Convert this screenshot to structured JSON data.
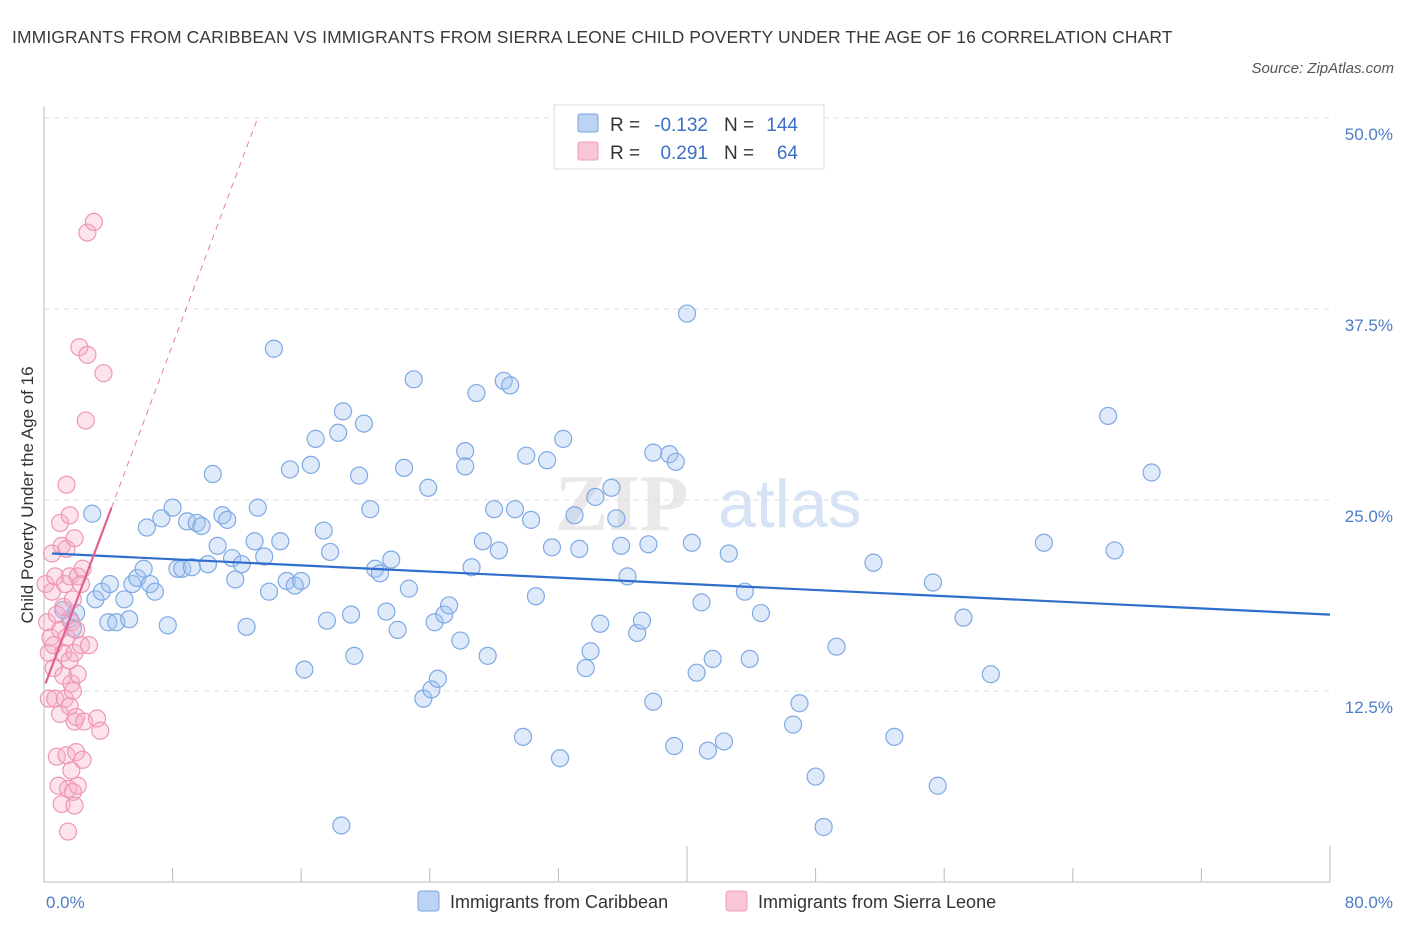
{
  "title": "IMMIGRANTS FROM CARIBBEAN VS IMMIGRANTS FROM SIERRA LEONE CHILD POVERTY UNDER THE AGE OF 16 CORRELATION CHART",
  "source": "Source: ZipAtlas.com",
  "watermark": {
    "zip": "ZIP",
    "atlas": "atlas"
  },
  "colors": {
    "blue": "#8fb6ea",
    "blue_line": "#2f6fcb",
    "pink": "#f2a2bd",
    "pink_line": "#e0608e",
    "axis_text": "#4a7cc9"
  },
  "legend_box": {
    "rows": [
      {
        "r_label": "R =",
        "r_value": "-0.132",
        "n_label": "N =",
        "n_value": "144"
      },
      {
        "r_label": "R =",
        "r_value": "0.291",
        "n_label": "N =",
        "n_value": "64"
      }
    ]
  },
  "chart_data": {
    "type": "scatter",
    "title": "IMMIGRANTS FROM CARIBBEAN VS IMMIGRANTS FROM SIERRA LEONE CHILD POVERTY UNDER THE AGE OF 16 CORRELATION CHART",
    "xlabel": "",
    "ylabel": "Child Poverty Under the Age of 16",
    "xlim": [
      0,
      80
    ],
    "ylim": [
      0,
      50
    ],
    "x_tick_labels": [
      "0.0%",
      "80.0%"
    ],
    "y_tick_labels": [
      "12.5%",
      "25.0%",
      "37.5%",
      "50.0%"
    ],
    "y_ticks": [
      12.5,
      25.0,
      37.5,
      50.0
    ],
    "grid": true,
    "legend_position": "bottom",
    "series": [
      {
        "name": "Immigrants from Caribbean",
        "color": "#8fb6ea",
        "R": -0.132,
        "N": 144,
        "trend": {
          "x": [
            0.5,
            80
          ],
          "y": [
            21.5,
            17.5
          ]
        },
        "points": [
          [
            1.2,
            17.8
          ],
          [
            1.6,
            17.2
          ],
          [
            2.0,
            17.6
          ],
          [
            1.8,
            16.6
          ],
          [
            3.0,
            24.1
          ],
          [
            3.2,
            18.5
          ],
          [
            3.6,
            19.0
          ],
          [
            4.0,
            17.0
          ],
          [
            4.1,
            19.5
          ],
          [
            4.5,
            17.0
          ],
          [
            5.0,
            18.5
          ],
          [
            5.3,
            17.2
          ],
          [
            5.5,
            19.5
          ],
          [
            5.8,
            19.9
          ],
          [
            6.2,
            20.5
          ],
          [
            6.4,
            23.2
          ],
          [
            6.6,
            19.5
          ],
          [
            6.9,
            19.0
          ],
          [
            7.3,
            23.8
          ],
          [
            7.7,
            16.8
          ],
          [
            8.0,
            24.5
          ],
          [
            8.3,
            20.5
          ],
          [
            8.6,
            20.5
          ],
          [
            8.9,
            23.6
          ],
          [
            9.2,
            20.6
          ],
          [
            9.5,
            23.5
          ],
          [
            9.8,
            23.3
          ],
          [
            10.2,
            20.8
          ],
          [
            10.5,
            26.7
          ],
          [
            10.8,
            22.0
          ],
          [
            11.1,
            24.0
          ],
          [
            11.4,
            23.7
          ],
          [
            11.7,
            21.2
          ],
          [
            11.9,
            19.8
          ],
          [
            12.3,
            20.8
          ],
          [
            12.6,
            16.7
          ],
          [
            13.1,
            22.3
          ],
          [
            13.3,
            24.5
          ],
          [
            13.7,
            21.3
          ],
          [
            14.0,
            19.0
          ],
          [
            14.3,
            34.9
          ],
          [
            14.7,
            22.3
          ],
          [
            15.1,
            19.7
          ],
          [
            15.3,
            27.0
          ],
          [
            15.6,
            19.4
          ],
          [
            16.0,
            19.7
          ],
          [
            16.2,
            13.9
          ],
          [
            16.6,
            27.3
          ],
          [
            16.9,
            29.0
          ],
          [
            17.4,
            23.0
          ],
          [
            17.6,
            17.1
          ],
          [
            17.8,
            21.6
          ],
          [
            18.3,
            29.4
          ],
          [
            18.6,
            30.8
          ],
          [
            19.1,
            17.5
          ],
          [
            19.3,
            14.8
          ],
          [
            19.6,
            26.6
          ],
          [
            19.9,
            30.0
          ],
          [
            20.3,
            24.4
          ],
          [
            20.6,
            20.5
          ],
          [
            20.9,
            20.2
          ],
          [
            21.3,
            17.7
          ],
          [
            21.6,
            21.1
          ],
          [
            22.0,
            16.5
          ],
          [
            22.4,
            27.1
          ],
          [
            22.7,
            19.2
          ],
          [
            23.0,
            32.9
          ],
          [
            23.6,
            12.0
          ],
          [
            23.9,
            25.8
          ],
          [
            24.1,
            12.6
          ],
          [
            24.3,
            17.0
          ],
          [
            24.5,
            13.3
          ],
          [
            24.9,
            17.5
          ],
          [
            25.2,
            18.1
          ],
          [
            25.9,
            15.8
          ],
          [
            26.2,
            28.2
          ],
          [
            26.2,
            27.2
          ],
          [
            26.6,
            20.6
          ],
          [
            26.9,
            32.0
          ],
          [
            27.3,
            22.3
          ],
          [
            27.6,
            14.8
          ],
          [
            28.0,
            24.4
          ],
          [
            28.3,
            21.7
          ],
          [
            28.6,
            32.8
          ],
          [
            29.0,
            32.5
          ],
          [
            29.3,
            24.4
          ],
          [
            29.8,
            9.5
          ],
          [
            30.0,
            27.9
          ],
          [
            30.3,
            23.7
          ],
          [
            30.6,
            18.7
          ],
          [
            31.3,
            27.6
          ],
          [
            31.6,
            21.9
          ],
          [
            32.3,
            29.0
          ],
          [
            32.1,
            8.1
          ],
          [
            33.0,
            24.0
          ],
          [
            33.3,
            21.8
          ],
          [
            33.7,
            14.0
          ],
          [
            34.0,
            15.1
          ],
          [
            34.3,
            25.2
          ],
          [
            34.6,
            16.9
          ],
          [
            35.3,
            25.8
          ],
          [
            35.6,
            23.8
          ],
          [
            35.9,
            22.0
          ],
          [
            36.3,
            20.0
          ],
          [
            36.9,
            16.3
          ],
          [
            37.2,
            17.1
          ],
          [
            37.6,
            22.1
          ],
          [
            37.9,
            28.1
          ],
          [
            37.9,
            11.8
          ],
          [
            38.9,
            28.0
          ],
          [
            39.2,
            8.9
          ],
          [
            39.3,
            27.5
          ],
          [
            40.0,
            37.2
          ],
          [
            40.3,
            22.2
          ],
          [
            40.6,
            13.7
          ],
          [
            40.9,
            18.3
          ],
          [
            41.3,
            8.6
          ],
          [
            41.6,
            14.6
          ],
          [
            42.3,
            9.2
          ],
          [
            42.6,
            21.5
          ],
          [
            43.6,
            19.0
          ],
          [
            43.9,
            14.6
          ],
          [
            44.6,
            17.6
          ],
          [
            46.6,
            10.3
          ],
          [
            47.0,
            11.7
          ],
          [
            48.0,
            6.9
          ],
          [
            49.3,
            15.4
          ],
          [
            51.6,
            20.9
          ],
          [
            52.9,
            9.5
          ],
          [
            55.3,
            19.6
          ],
          [
            55.6,
            6.3
          ],
          [
            57.2,
            17.3
          ],
          [
            58.9,
            13.6
          ],
          [
            62.2,
            22.2
          ],
          [
            66.2,
            30.5
          ],
          [
            66.6,
            21.7
          ],
          [
            68.9,
            26.8
          ],
          [
            18.5,
            3.7
          ],
          [
            48.5,
            3.6
          ]
        ]
      },
      {
        "name": "Immigrants from Sierra Leone",
        "color": "#f2a2bd",
        "R": 0.291,
        "N": 64,
        "trend": {
          "x": [
            0.1,
            4.2
          ],
          "y": [
            13.0,
            24.5
          ]
        },
        "points": [
          [
            0.1,
            19.5
          ],
          [
            0.2,
            17.0
          ],
          [
            0.3,
            15.0
          ],
          [
            0.3,
            12.0
          ],
          [
            0.4,
            16.0
          ],
          [
            0.5,
            21.5
          ],
          [
            0.5,
            19.0
          ],
          [
            0.6,
            15.5
          ],
          [
            0.6,
            14.0
          ],
          [
            0.7,
            20.0
          ],
          [
            0.7,
            12.0
          ],
          [
            0.8,
            17.5
          ],
          [
            0.8,
            8.2
          ],
          [
            0.9,
            6.3
          ],
          [
            1.0,
            23.5
          ],
          [
            1.0,
            16.5
          ],
          [
            1.0,
            11.0
          ],
          [
            1.1,
            22.0
          ],
          [
            1.1,
            5.1
          ],
          [
            1.2,
            18.0
          ],
          [
            1.2,
            15.0
          ],
          [
            1.2,
            13.5
          ],
          [
            1.3,
            19.5
          ],
          [
            1.3,
            12.0
          ],
          [
            1.4,
            21.8
          ],
          [
            1.4,
            26.0
          ],
          [
            1.4,
            16.0
          ],
          [
            1.4,
            8.3
          ],
          [
            1.5,
            6.1
          ],
          [
            1.5,
            3.3
          ],
          [
            1.6,
            24.0
          ],
          [
            1.6,
            20.0
          ],
          [
            1.6,
            14.5
          ],
          [
            1.6,
            11.5
          ],
          [
            1.7,
            17.0
          ],
          [
            1.7,
            13.0
          ],
          [
            1.7,
            7.3
          ],
          [
            1.8,
            18.5
          ],
          [
            1.8,
            12.5
          ],
          [
            1.8,
            5.9
          ],
          [
            1.9,
            22.5
          ],
          [
            1.9,
            15.0
          ],
          [
            1.9,
            10.5
          ],
          [
            1.9,
            5.0
          ],
          [
            2.0,
            16.5
          ],
          [
            2.0,
            8.5
          ],
          [
            2.0,
            10.8
          ],
          [
            2.1,
            20.0
          ],
          [
            2.1,
            13.6
          ],
          [
            2.1,
            6.3
          ],
          [
            2.2,
            35.0
          ],
          [
            2.3,
            19.5
          ],
          [
            2.3,
            15.5
          ],
          [
            2.4,
            20.5
          ],
          [
            2.4,
            8.0
          ],
          [
            2.5,
            10.5
          ],
          [
            2.6,
            30.2
          ],
          [
            2.7,
            34.5
          ],
          [
            2.7,
            42.5
          ],
          [
            2.8,
            15.5
          ],
          [
            3.1,
            43.2
          ],
          [
            3.3,
            10.7
          ],
          [
            3.5,
            9.9
          ],
          [
            3.7,
            33.3
          ]
        ]
      }
    ]
  },
  "bottom_legend": [
    "Immigrants from Caribbean",
    "Immigrants from Sierra Leone"
  ]
}
